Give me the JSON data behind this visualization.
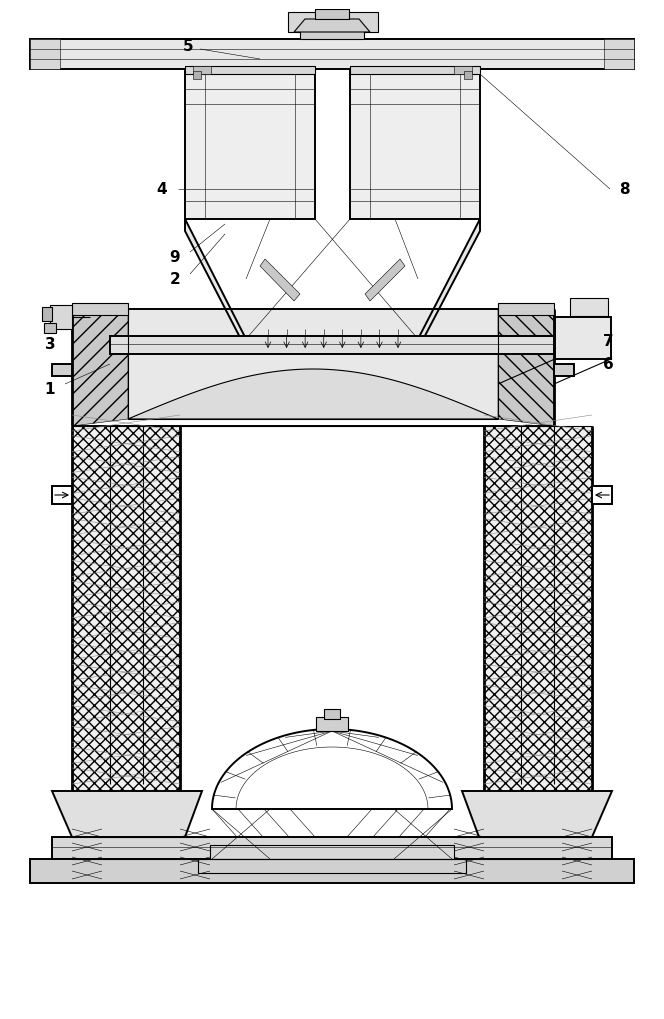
{
  "bg_color": "#ffffff",
  "line_color": "#000000",
  "lw_thin": 0.4,
  "lw_med": 0.8,
  "lw_thick": 1.4,
  "lw_heavy": 2.0,
  "gray_light": "#eeeeee",
  "gray_mid": "#d0d0d0",
  "gray_dark": "#a0a0a0",
  "label_fs": 11
}
